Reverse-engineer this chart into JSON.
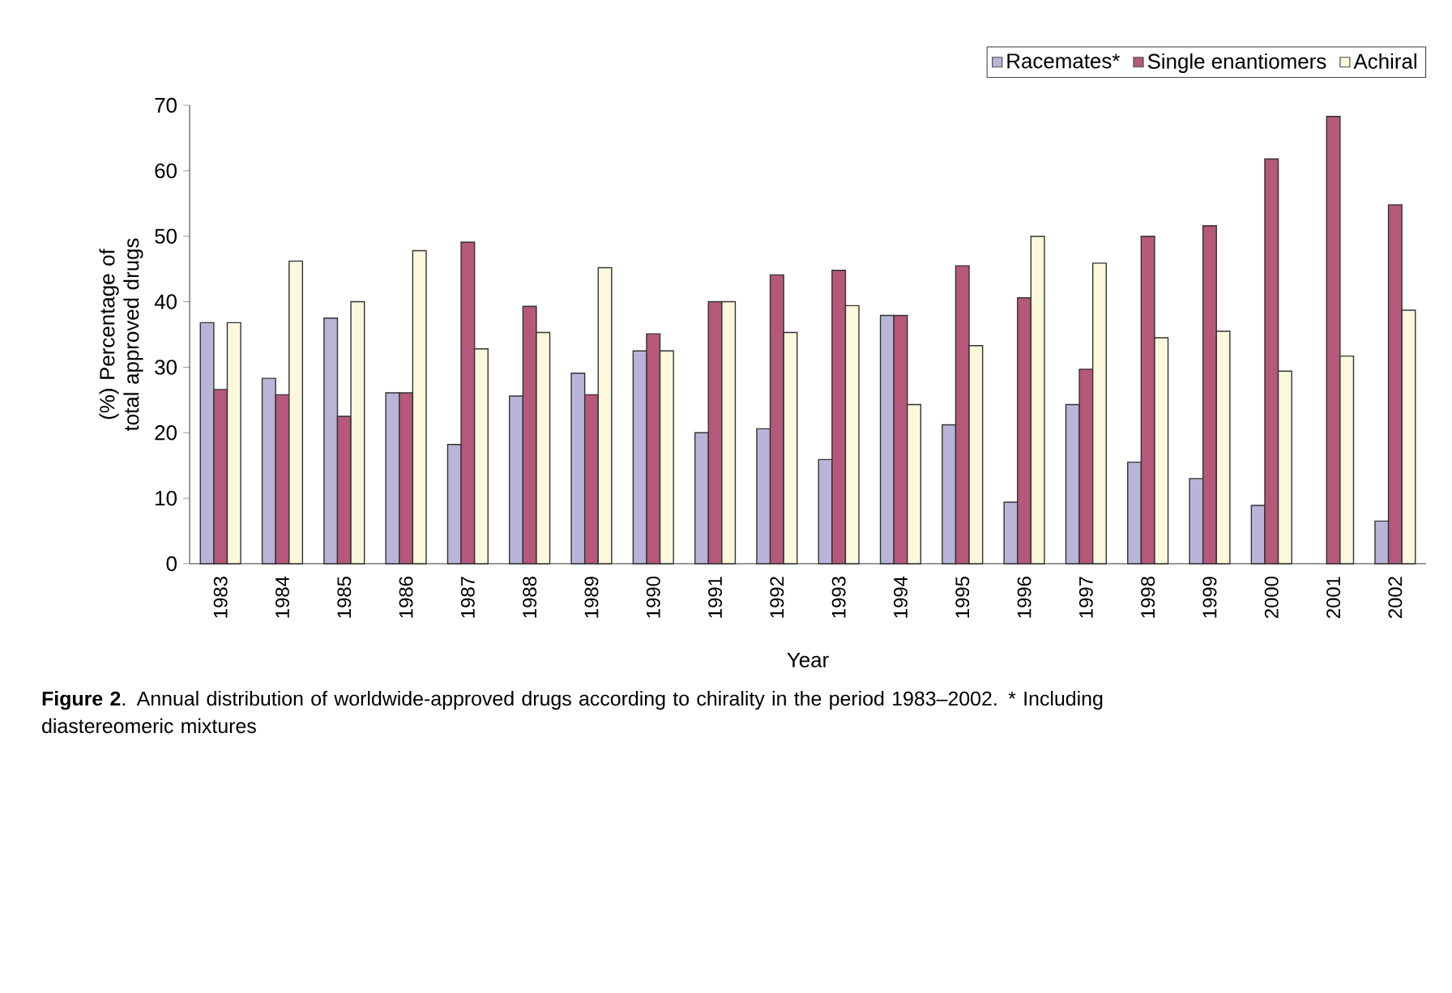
{
  "chart_data": {
    "type": "bar",
    "xlabel": "Year",
    "ylabel": "(%) Percentage of total approved drugs",
    "categories": [
      "1983",
      "1984",
      "1985",
      "1986",
      "1987",
      "1988",
      "1989",
      "1990",
      "1991",
      "1992",
      "1993",
      "1994",
      "1995",
      "1996",
      "1997",
      "1998",
      "1999",
      "2000",
      "2001",
      "2002"
    ],
    "series": [
      {
        "name": "Racemates*",
        "color": "#b9b5d9",
        "values": [
          36.8,
          28.3,
          37.5,
          26.1,
          18.2,
          25.6,
          29.1,
          32.5,
          20.0,
          20.6,
          15.9,
          37.9,
          21.2,
          9.4,
          24.3,
          15.5,
          13.0,
          8.9,
          null,
          6.5
        ]
      },
      {
        "name": "Single enantiomers",
        "color": "#b5587a",
        "values": [
          26.6,
          25.8,
          22.5,
          26.1,
          49.1,
          39.3,
          25.8,
          35.1,
          40.0,
          44.1,
          44.8,
          37.9,
          45.5,
          40.6,
          29.7,
          50.0,
          51.6,
          61.8,
          68.3,
          54.8
        ]
      },
      {
        "name": "Achiral",
        "color": "#fbf8dc",
        "values": [
          36.8,
          46.2,
          40.0,
          47.8,
          32.8,
          35.3,
          45.2,
          32.5,
          40.0,
          35.3,
          39.4,
          24.3,
          33.3,
          50.0,
          45.9,
          34.5,
          35.5,
          29.4,
          31.7,
          38.7
        ]
      }
    ],
    "ylim": [
      0,
      70
    ],
    "yticks": [
      0,
      10,
      20,
      30,
      40,
      50,
      60,
      70
    ],
    "grid": false,
    "legend": "top right",
    "annotations": [
      "**Figure 2**. Annual distribution of worldwide-approved drugs according to chirality in the period 1983–2002. * Including diastereomeric mixtures"
    ]
  }
}
